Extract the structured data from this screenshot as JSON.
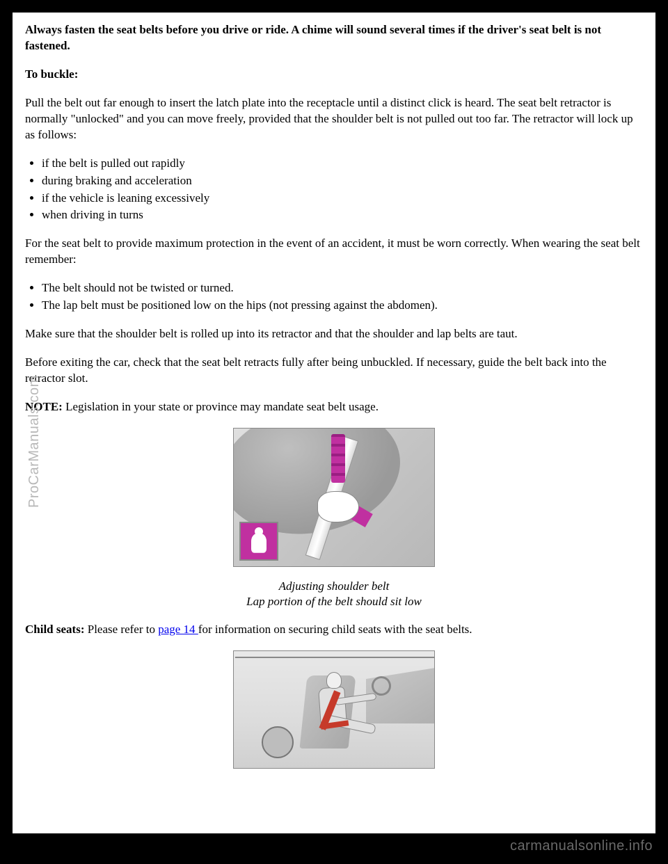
{
  "intro": "Always fasten the seat belts before you drive or ride. A chime will sound several times if the driver's seat belt is not fastened.",
  "buckle_heading": "To buckle:",
  "buckle_intro": "Pull the belt out far enough to insert the latch plate into the receptacle until a distinct click is heard. The seat belt retractor is normally \"unlocked\" and you can move freely, provided that the shoulder belt is not pulled out too far. The retractor will lock up as follows:",
  "lock_conditions": [
    "if the belt is pulled out rapidly",
    "during braking and acceleration",
    "if the vehicle is leaning excessively",
    "when driving in turns"
  ],
  "wear_intro": "For the seat belt to provide maximum protection in the event of an accident, it must be worn correctly. When wearing the seat belt remember:",
  "wear_rules": [
    "The belt should not be twisted or turned.",
    "The lap belt must be positioned low on the hips (not pressing against the abdomen)."
  ],
  "shoulder_para": "Make sure that the shoulder belt is rolled up into its retractor and that the shoulder and lap belts are taut.",
  "retract_para": "Before exiting the car, check that the seat belt retracts fully after being unbuckled. If necessary, guide the belt back into the retractor slot.",
  "note_label": "NOTE:",
  "note_text": " Legislation in your state or province may mandate seat belt usage.",
  "caption_line1": "Adjusting shoulder belt",
  "caption_line2": "Lap portion of the belt should sit low",
  "child_label": "Child seats:",
  "child_pre": " Please refer to ",
  "child_link": "page 14 ",
  "child_post": "for information on securing child seats with the seat belts.",
  "watermark_side": "ProCarManuals.com",
  "footer": "carmanualsonline.info"
}
